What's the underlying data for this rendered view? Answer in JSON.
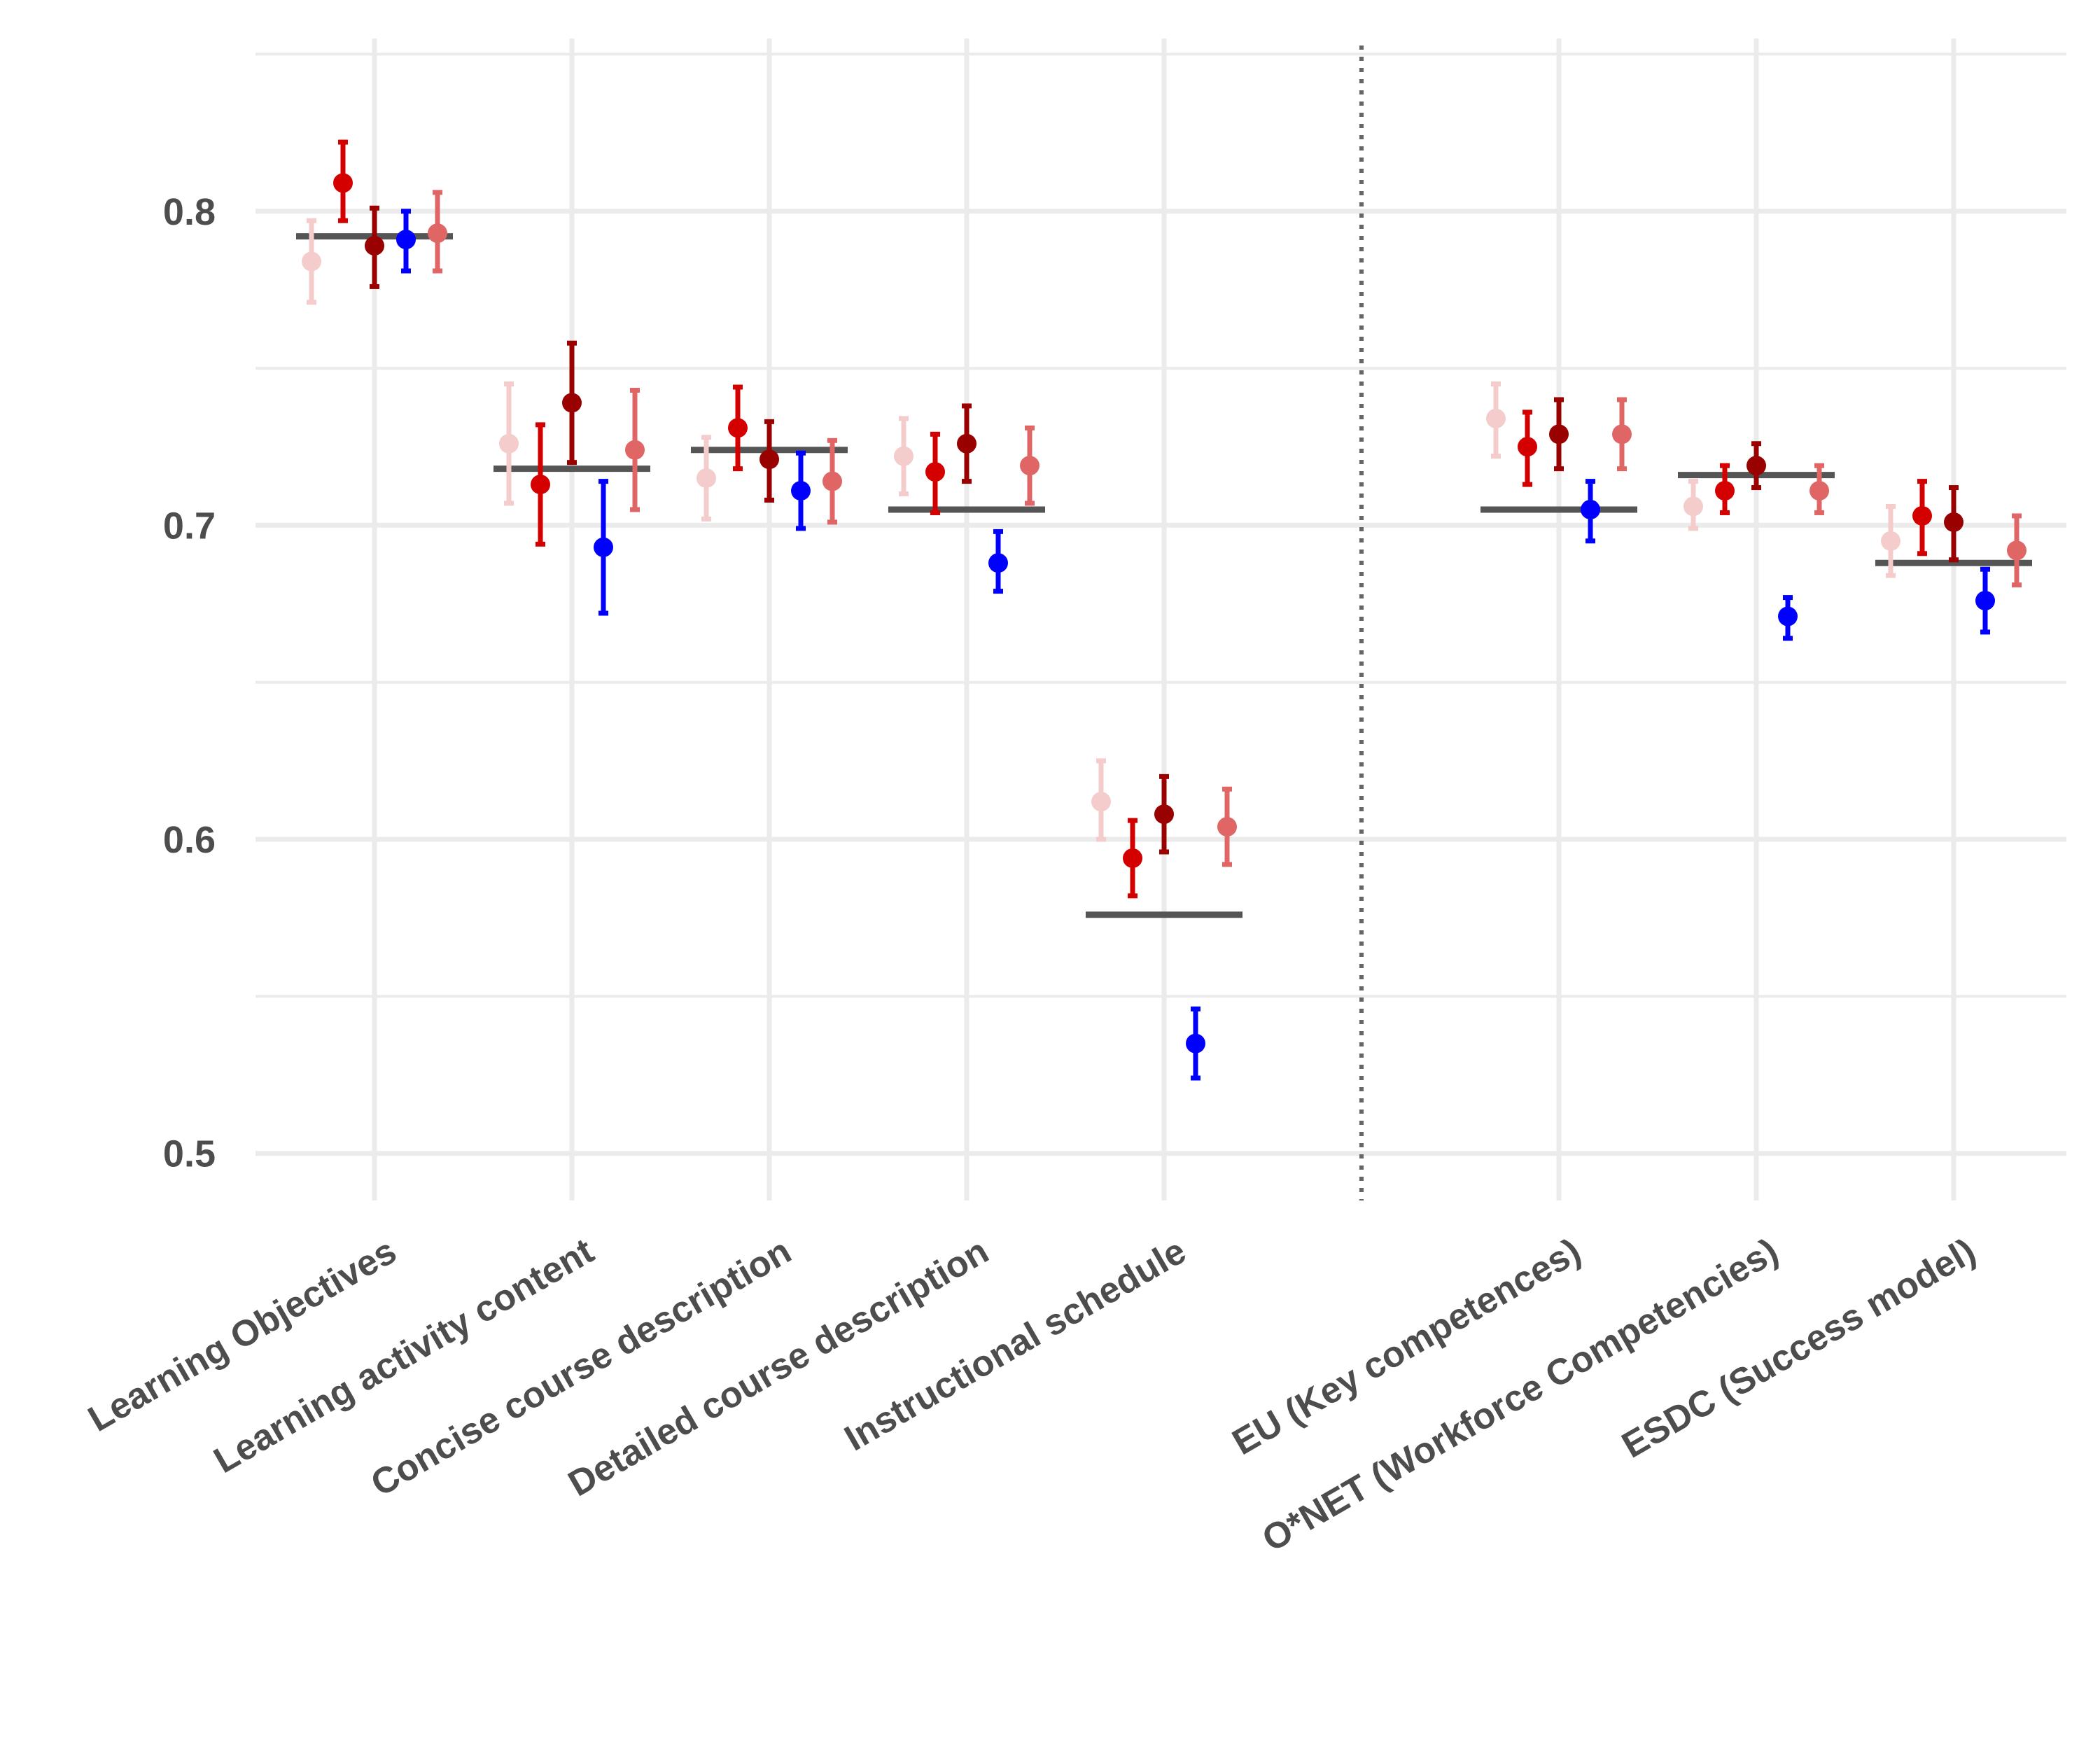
{
  "chart_data": {
    "type": "scatter",
    "subtype": "dot-and-error-bar",
    "title": "",
    "xlabel": "",
    "ylabel": "",
    "ylim": [
      0.485,
      0.855
    ],
    "y_ticks": [
      0.5,
      0.6,
      0.7,
      0.8
    ],
    "y_tick_labels": [
      "0.5",
      "0.6",
      "0.7",
      "0.8"
    ],
    "grid": true,
    "legend": "none",
    "categories": [
      "Learning Objectives",
      "Learning activity content",
      "Concise course description",
      "Detailed course description",
      "Instructional schedule",
      "",
      "EU (Key competences)",
      "O*NET (Workforce Competencies)",
      "ESDC (Success model)"
    ],
    "separator_after_index": 4,
    "colors": {
      "s1": "#f4cccc",
      "s2": "#d40000",
      "s3": "#990000",
      "s4": "#0000ff",
      "s5": "#e06666",
      "baseline": "#555555",
      "separator": "#666666",
      "grid": "#ebebeb",
      "text": "#4d4d4d"
    },
    "baseline": [
      0.792,
      0.718,
      0.724,
      0.705,
      0.576,
      null,
      0.705,
      0.716,
      0.688
    ],
    "series": [
      {
        "name": "s1",
        "color": "#f4cccc",
        "values": [
          0.784,
          0.726,
          0.715,
          0.722,
          0.612,
          null,
          0.734,
          0.706,
          0.695
        ],
        "lower": [
          0.771,
          0.707,
          0.702,
          0.71,
          0.6,
          null,
          0.722,
          0.699,
          0.684
        ],
        "upper": [
          0.797,
          0.745,
          0.728,
          0.734,
          0.625,
          null,
          0.745,
          0.714,
          0.706
        ]
      },
      {
        "name": "s2",
        "color": "#d40000",
        "values": [
          0.809,
          0.713,
          0.731,
          0.717,
          0.594,
          null,
          0.725,
          0.711,
          0.703
        ],
        "lower": [
          0.797,
          0.694,
          0.718,
          0.704,
          0.582,
          null,
          0.713,
          0.704,
          0.691
        ],
        "upper": [
          0.822,
          0.732,
          0.744,
          0.729,
          0.606,
          null,
          0.736,
          0.719,
          0.714
        ]
      },
      {
        "name": "s3",
        "color": "#990000",
        "values": [
          0.789,
          0.739,
          0.721,
          0.726,
          0.608,
          null,
          0.729,
          0.719,
          0.701
        ],
        "lower": [
          0.776,
          0.72,
          0.708,
          0.714,
          0.596,
          null,
          0.718,
          0.712,
          0.689
        ],
        "upper": [
          0.801,
          0.758,
          0.733,
          0.738,
          0.62,
          null,
          0.74,
          0.726,
          0.712
        ]
      },
      {
        "name": "s4",
        "color": "#0000ff",
        "values": [
          0.791,
          0.693,
          0.711,
          0.688,
          0.535,
          null,
          0.705,
          0.671,
          0.676
        ],
        "lower": [
          0.781,
          0.672,
          0.699,
          0.679,
          0.524,
          null,
          0.695,
          0.664,
          0.666
        ],
        "upper": [
          0.8,
          0.714,
          0.723,
          0.698,
          0.546,
          null,
          0.714,
          0.677,
          0.686
        ]
      },
      {
        "name": "s5",
        "color": "#e06666",
        "values": [
          0.793,
          0.724,
          0.714,
          0.719,
          0.604,
          null,
          0.729,
          0.711,
          0.692
        ],
        "lower": [
          0.781,
          0.705,
          0.701,
          0.707,
          0.592,
          null,
          0.718,
          0.704,
          0.681
        ],
        "upper": [
          0.806,
          0.743,
          0.727,
          0.731,
          0.616,
          null,
          0.74,
          0.719,
          0.703
        ]
      }
    ]
  }
}
